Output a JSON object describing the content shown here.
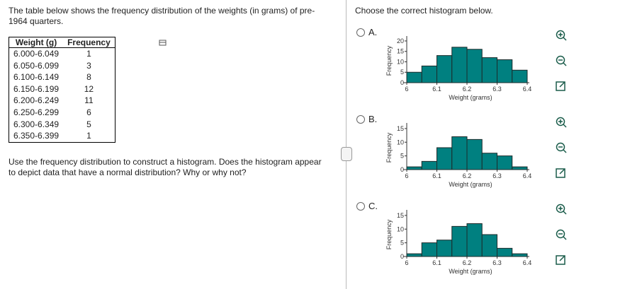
{
  "question": {
    "intro": "The table below shows the frequency distribution of the weights (in grams) of pre-1964 quarters.",
    "instruction": "Use the frequency distribution to construct a histogram. Does the histogram appear to depict data that have a normal distribution? Why or why not?"
  },
  "table": {
    "headers": [
      "Weight (g)",
      "Frequency"
    ],
    "rows": [
      [
        "6.000-6.049",
        1
      ],
      [
        "6.050-6.099",
        3
      ],
      [
        "6.100-6.149",
        8
      ],
      [
        "6.150-6.199",
        12
      ],
      [
        "6.200-6.249",
        11
      ],
      [
        "6.250-6.299",
        6
      ],
      [
        "6.300-6.349",
        5
      ],
      [
        "6.350-6.399",
        1
      ]
    ]
  },
  "prompt": "Choose the correct histogram below.",
  "options": [
    {
      "label": "A.",
      "chart": {
        "type": "histogram",
        "x_label": "Weight (grams)",
        "y_label": "Frequency",
        "bins": [
          6,
          6.05,
          6.1,
          6.15,
          6.2,
          6.25,
          6.3,
          6.35,
          6.4
        ],
        "counts": [
          5,
          8,
          13,
          17,
          16,
          12,
          11,
          6
        ],
        "color": "#008080",
        "xlim": [
          6,
          6.4
        ],
        "xticks": [
          6,
          6.1,
          6.2,
          6.3,
          6.4
        ],
        "ylim": [
          0,
          21
        ],
        "yticks": [
          0,
          5,
          10,
          15,
          20
        ]
      }
    },
    {
      "label": "B.",
      "chart": {
        "type": "histogram",
        "x_label": "Weight (grams)",
        "y_label": "Frequency",
        "bins": [
          6,
          6.05,
          6.1,
          6.15,
          6.2,
          6.25,
          6.3,
          6.35,
          6.4
        ],
        "counts": [
          1,
          3,
          8,
          12,
          11,
          6,
          5,
          1
        ],
        "color": "#008080",
        "xlim": [
          6,
          6.4
        ],
        "xticks": [
          6,
          6.1,
          6.2,
          6.3,
          6.4
        ],
        "ylim": [
          0,
          16
        ],
        "yticks": [
          0,
          5,
          10,
          15
        ]
      }
    },
    {
      "label": "C.",
      "chart": {
        "type": "histogram",
        "x_label": "Weight (grams)",
        "y_label": "Frequency",
        "bins": [
          6,
          6.05,
          6.1,
          6.15,
          6.2,
          6.25,
          6.3,
          6.35,
          6.4
        ],
        "counts": [
          1,
          5,
          6,
          11,
          12,
          8,
          3,
          1
        ],
        "color": "#008080",
        "xlim": [
          6,
          6.4
        ],
        "xticks": [
          6,
          6.1,
          6.2,
          6.3,
          6.4
        ],
        "ylim": [
          0,
          16
        ],
        "yticks": [
          0,
          5,
          10,
          15
        ]
      }
    }
  ]
}
